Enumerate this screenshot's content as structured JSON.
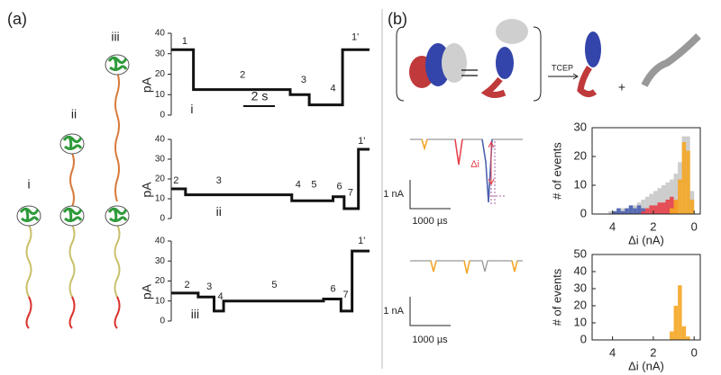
{
  "figure": {
    "panel_a": "(a)",
    "panel_b": "(b)",
    "constructs": [
      "i",
      "ii",
      "iii"
    ],
    "tcep": "TCEP",
    "plus": "+",
    "delta_i": "Δi",
    "scale_current": [
      "1 nA",
      "1 nA"
    ],
    "scale_time": [
      "1000 µs",
      "1000 µs"
    ]
  },
  "chart_data": [
    {
      "type": "line",
      "x": [
        0,
        1.4,
        1.4,
        7.5,
        7.5,
        8.7,
        8.7,
        10.8,
        10.8,
        12.5
      ],
      "values": [
        32,
        32,
        12.5,
        12.5,
        10,
        10,
        5,
        5,
        32,
        32
      ],
      "color": "#111111",
      "xlim": [
        0,
        12.5
      ],
      "ylim": [
        0,
        40
      ],
      "yticks": [
        0,
        10,
        20,
        30,
        40
      ],
      "ylabel": "pA",
      "scale_bar": "2 s",
      "annotations": [
        {
          "text": "1",
          "x": 0.85,
          "y": 36
        },
        {
          "text": "2",
          "x": 4.5,
          "y": 19.5
        },
        {
          "text": "3",
          "x": 8.35,
          "y": 17
        },
        {
          "text": "4",
          "x": 10.2,
          "y": 13
        },
        {
          "text": "1'",
          "x": 11.6,
          "y": 38
        },
        {
          "text": "i",
          "x": 1.3,
          "y": 2.6
        }
      ]
    },
    {
      "type": "line",
      "x": [
        0,
        0.9,
        0.9,
        7.6,
        7.6,
        10.2,
        10.2,
        10.9,
        10.9,
        11.8,
        11.8,
        12.5
      ],
      "values": [
        15,
        15,
        12,
        12,
        9,
        9,
        11,
        11,
        5,
        5,
        35,
        35
      ],
      "color": "#111111",
      "xlim": [
        0,
        12.5
      ],
      "ylim": [
        0,
        40
      ],
      "yticks": [
        0,
        10,
        20,
        30,
        40
      ],
      "ylabel": "pA",
      "annotations": [
        {
          "text": "2",
          "x": 0.3,
          "y": 19
        },
        {
          "text": "3",
          "x": 3,
          "y": 19
        },
        {
          "text": "4",
          "x": 8,
          "y": 17
        },
        {
          "text": "5",
          "x": 9,
          "y": 17
        },
        {
          "text": "6",
          "x": 10.6,
          "y": 16
        },
        {
          "text": "7",
          "x": 11.3,
          "y": 13
        },
        {
          "text": "1'",
          "x": 12,
          "y": 39
        },
        {
          "text": "ii",
          "x": 3,
          "y": 3
        }
      ]
    },
    {
      "type": "line",
      "x": [
        0,
        1.7,
        1.7,
        2.7,
        2.7,
        3.3,
        3.3,
        9.6,
        9.6,
        10.7,
        10.7,
        11.4,
        11.4,
        12.5
      ],
      "values": [
        14,
        14,
        12,
        12,
        5,
        5,
        10,
        10,
        11,
        11,
        5,
        5,
        35,
        35
      ],
      "color": "#111111",
      "xlim": [
        0,
        12.5
      ],
      "ylim": [
        0,
        40
      ],
      "yticks": [
        0,
        10,
        20,
        30,
        40
      ],
      "ylabel": "pA",
      "annotations": [
        {
          "text": "2",
          "x": 1,
          "y": 18
        },
        {
          "text": "3",
          "x": 2.4,
          "y": 17
        },
        {
          "text": "4",
          "x": 3.1,
          "y": 12
        },
        {
          "text": "5",
          "x": 6.5,
          "y": 18
        },
        {
          "text": "6",
          "x": 10.2,
          "y": 16
        },
        {
          "text": "7",
          "x": 11,
          "y": 13
        },
        {
          "text": "1'",
          "x": 12,
          "y": 40
        },
        {
          "text": "iii",
          "x": 1.5,
          "y": 3
        }
      ]
    },
    {
      "type": "histogram",
      "bins": [
        0,
        0.2,
        0.4,
        0.6,
        0.8,
        1,
        1.2,
        1.4,
        1.6,
        1.8,
        2,
        2.2,
        2.4,
        2.6,
        2.8,
        3,
        3.2,
        3.4,
        3.6,
        3.8,
        4,
        4.2,
        4.4,
        4.6,
        4.8
      ],
      "series": [
        {
          "color": "#c8c8c8",
          "values": [
            8,
            27,
            27,
            18,
            14,
            12,
            11,
            10,
            9,
            8,
            7,
            6,
            5,
            4,
            3,
            3,
            2,
            2,
            2,
            1,
            1,
            0,
            0,
            0
          ]
        },
        {
          "color": "#4a5fb0",
          "values": [
            0,
            0,
            0,
            0,
            0,
            0,
            0,
            0,
            0,
            0,
            0,
            0,
            2,
            3,
            2,
            3,
            2,
            1,
            2,
            1,
            0,
            0,
            0,
            0
          ]
        },
        {
          "color": "#e8404a",
          "values": [
            0,
            0,
            0,
            0,
            5,
            6,
            5,
            4,
            4,
            3,
            3,
            2,
            1,
            0,
            0,
            0,
            0,
            0,
            0,
            0,
            0,
            0,
            0,
            0
          ]
        },
        {
          "color": "#f5a623",
          "values": [
            5,
            22,
            25,
            12,
            5,
            2,
            0,
            0,
            0,
            0,
            0,
            0,
            0,
            0,
            0,
            0,
            0,
            0,
            0,
            0,
            0,
            0,
            0,
            0
          ]
        }
      ],
      "xlim": [
        5,
        -0.3
      ],
      "xticks": [
        4,
        2,
        0
      ],
      "ylim": [
        0,
        30
      ],
      "yticks": [
        0,
        10,
        20,
        30
      ],
      "xlabel": "Δi (nA)",
      "ylabel": "# of events"
    },
    {
      "type": "histogram",
      "bins": [
        0,
        0.2,
        0.4,
        0.6,
        0.8,
        1,
        1.2,
        1.4,
        1.6,
        1.8,
        2,
        2.2,
        2.4,
        2.6,
        2.8,
        3,
        3.2,
        3.4,
        3.6,
        3.8,
        4,
        4.2,
        4.4,
        4.6,
        4.8
      ],
      "series": [
        {
          "color": "#f5a623",
          "values": [
            0,
            2,
            8,
            32,
            20,
            5,
            0,
            0,
            0,
            0,
            0,
            0,
            0,
            0,
            0,
            0,
            0,
            0,
            0,
            0,
            0,
            0,
            0,
            0
          ]
        }
      ],
      "xlim": [
        5,
        -0.3
      ],
      "xticks": [
        4,
        2,
        0
      ],
      "ylim": [
        0,
        50
      ],
      "yticks": [
        0,
        10,
        20,
        30,
        40,
        50
      ],
      "xlabel": "Δi (nA)",
      "ylabel": "# of events"
    }
  ]
}
